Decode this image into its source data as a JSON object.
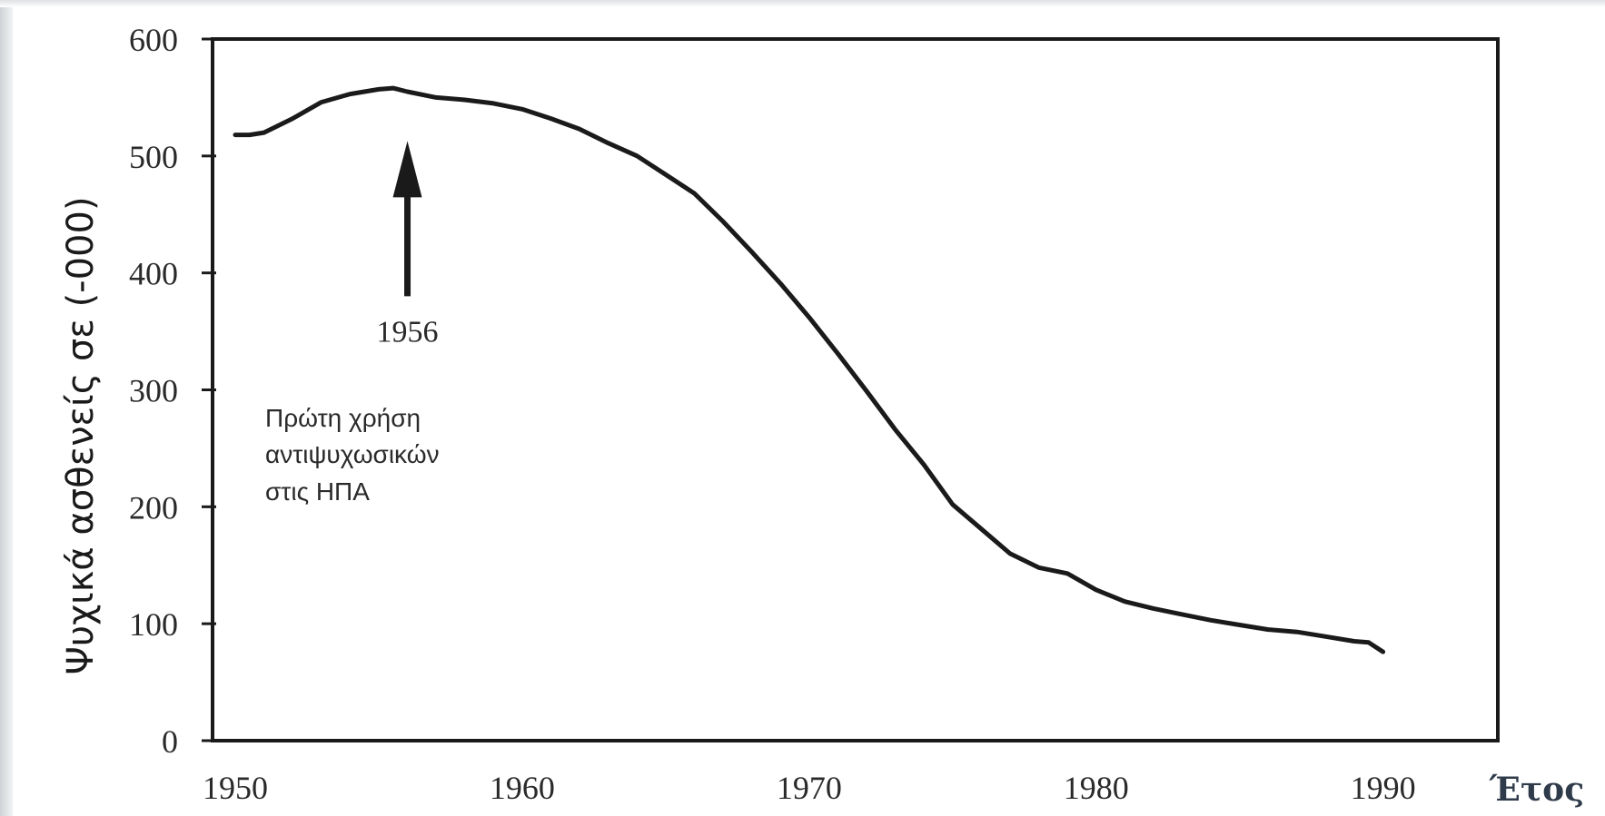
{
  "chart_data": {
    "type": "line",
    "title": "",
    "xlabel": "Έτος",
    "ylabel": "Ψυχικά ασθενείς σε (-000)",
    "xlim": [
      1950,
      1994
    ],
    "ylim": [
      0,
      600
    ],
    "x_ticks": [
      "1950",
      "1960",
      "1970",
      "1980",
      "1990"
    ],
    "y_ticks": [
      "0",
      "100",
      "200",
      "300",
      "400",
      "500",
      "600"
    ],
    "grid": false,
    "series": [
      {
        "x": [
          1950,
          1950.5,
          1951,
          1952,
          1953,
          1954,
          1955,
          1955.5,
          1956,
          1957,
          1958,
          1959,
          1960,
          1961,
          1962,
          1963,
          1964,
          1965,
          1966,
          1967,
          1968,
          1969,
          1970,
          1971,
          1972,
          1973,
          1974,
          1975,
          1976,
          1977,
          1978,
          1979,
          1980,
          1981,
          1982,
          1983,
          1984,
          1985,
          1986,
          1987,
          1988,
          1989,
          1989.5,
          1990
        ],
        "values": [
          518,
          518,
          520,
          532,
          546,
          553,
          557,
          558,
          555,
          550,
          548,
          545,
          540,
          532,
          523,
          511,
          500,
          484,
          468,
          444,
          418,
          391,
          362,
          331,
          299,
          266,
          236,
          202,
          181,
          160,
          148,
          143,
          129,
          119,
          113,
          108,
          103,
          99,
          95,
          93,
          89,
          85,
          84,
          76
        ]
      }
    ],
    "annotations": {
      "arrow_year": "1956",
      "arrow_x": 1956,
      "arrow_tail_y": 380,
      "arrow_head_y": 505,
      "text_lines": [
        "Πρώτη χρήση",
        "αντιψυχωσικών",
        "στις ΗΠΑ"
      ]
    }
  }
}
